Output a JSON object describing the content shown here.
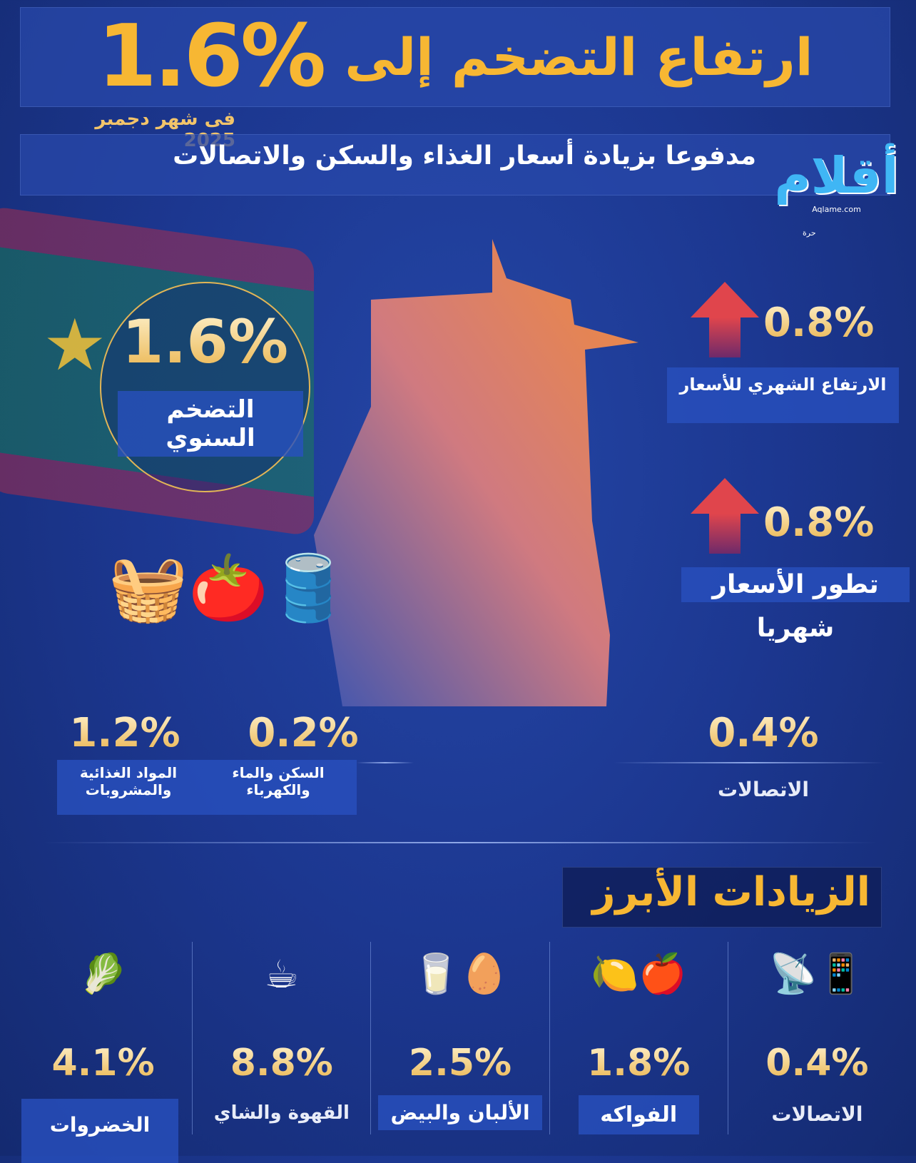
{
  "header": {
    "title": "ارتفاع التضخم إلى",
    "title_value": "1.6%",
    "date": "فى شهر دجمبر 2025",
    "subtitle": "مدفوعا بزيادة أسعار الغذاء والسكن والاتصالات"
  },
  "logo": {
    "text": "أقلام",
    "url_text": "Aqlame.com",
    "tag": "حرة"
  },
  "annual": {
    "value": "1.6%",
    "label": "التضخم السنوي"
  },
  "monthly_rise": {
    "value": "0.8%",
    "label": "الارتفاع الشهري للأسعار"
  },
  "monthly_trend": {
    "value": "0.8%",
    "label_line1": "تطور الأسعار",
    "label_line2": "شهريا"
  },
  "categories": [
    {
      "value": "1.2%",
      "label_line1": "المواد الغذائية",
      "label_line2": "والمشروبات"
    },
    {
      "value": "0.2%",
      "label_line1": "السكن والماء",
      "label_line2": "والكهرباء"
    },
    {
      "value": "0.4%",
      "label_line1": "الاتصالات",
      "label_line2": ""
    }
  ],
  "increases": {
    "title": "الزيادات الأبرز",
    "items": [
      {
        "value": "4.1%",
        "label": "الخضروات",
        "icon": "vegetable-basket-icon"
      },
      {
        "value": "8.8%",
        "label": "القهوة والشاي",
        "icon": "coffee-icon"
      },
      {
        "value": "2.5%",
        "label": "الألبان والبيض",
        "icon": "milk-eggs-icon"
      },
      {
        "value": "1.8%",
        "label": "الفواكه",
        "icon": "fruit-icon"
      },
      {
        "value": "0.4%",
        "label": "الاتصالات",
        "icon": "telecom-icon"
      }
    ]
  },
  "colors": {
    "gold": "#f7b733",
    "background": "#1c3790",
    "arrow": "#e0454c",
    "map": "#e8844a"
  }
}
